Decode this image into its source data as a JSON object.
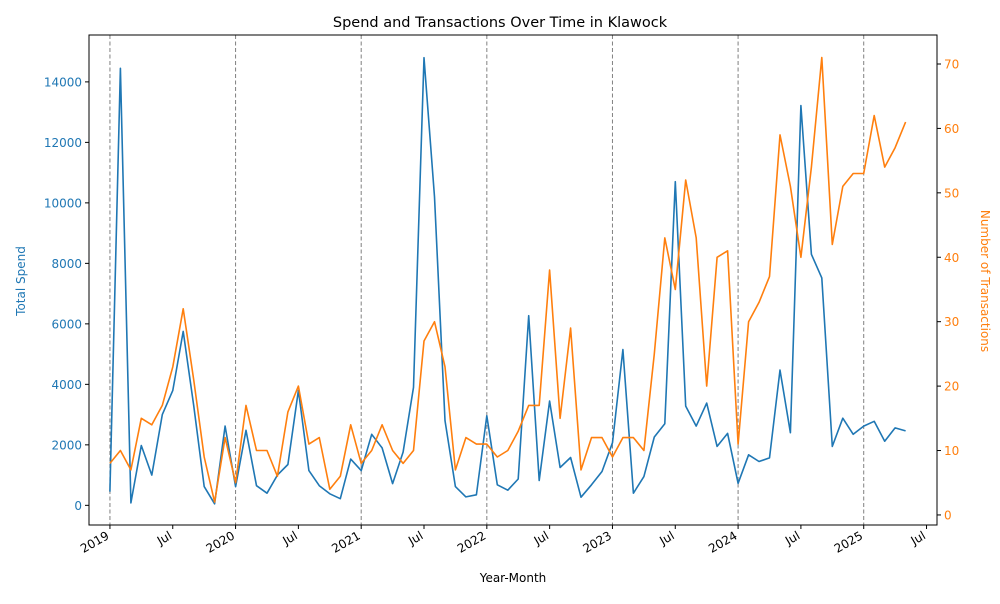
{
  "chart_data": {
    "type": "line",
    "title": "Spend and Transactions Over Time in Klawock",
    "xlabel": "Year-Month",
    "ylabel_left": "Total Spend",
    "ylabel_right": "Number of Transactions",
    "x_start": "2019-01",
    "xlim": [
      "2018-11",
      "2025-08"
    ],
    "ylim_left": [
      -650,
      15550
    ],
    "ylim_right": [
      -1.56,
      74.5
    ],
    "yticks_left": [
      "0",
      "2000",
      "4000",
      "6000",
      "8000",
      "10000",
      "12000",
      "14000"
    ],
    "yticks_right": [
      "0",
      "10",
      "20",
      "30",
      "40",
      "50",
      "60",
      "70"
    ],
    "xticks": [
      {
        "date": "2019-01",
        "label": "2019"
      },
      {
        "date": "2019-07",
        "label": "Jul"
      },
      {
        "date": "2020-01",
        "label": "2020"
      },
      {
        "date": "2020-07",
        "label": "Jul"
      },
      {
        "date": "2021-01",
        "label": "2021"
      },
      {
        "date": "2021-07",
        "label": "Jul"
      },
      {
        "date": "2022-01",
        "label": "2022"
      },
      {
        "date": "2022-07",
        "label": "Jul"
      },
      {
        "date": "2023-01",
        "label": "2023"
      },
      {
        "date": "2023-07",
        "label": "Jul"
      },
      {
        "date": "2024-01",
        "label": "2024"
      },
      {
        "date": "2024-07",
        "label": "Jul"
      },
      {
        "date": "2025-01",
        "label": "2025"
      },
      {
        "date": "2025-07",
        "label": "Jul"
      }
    ],
    "year_lines": [
      "2019-01",
      "2020-01",
      "2021-01",
      "2022-01",
      "2023-01",
      "2024-01",
      "2025-01"
    ],
    "series": [
      {
        "axis": "left",
        "color": "#1f77b4",
        "values": [
          450,
          14450,
          80,
          1980,
          1000,
          3000,
          3800,
          5750,
          3300,
          620,
          50,
          2620,
          620,
          2480,
          650,
          400,
          1000,
          1350,
          3800,
          1150,
          650,
          380,
          220,
          1530,
          1150,
          2350,
          1900,
          720,
          1760,
          3900,
          14800,
          10200,
          2800,
          620,
          280,
          350,
          2960,
          680,
          500,
          870,
          6270,
          820,
          3450,
          1250,
          1580,
          270,
          680,
          1120,
          2070,
          5150,
          400,
          950,
          2260,
          2700,
          10700,
          3280,
          2620,
          3380,
          1950,
          2380,
          730,
          1670,
          1450,
          1570,
          4470,
          2400,
          13220,
          8300,
          7520,
          1950,
          2880,
          2350,
          2620,
          2780,
          2120,
          2560,
          2460
        ]
      },
      {
        "axis": "right",
        "color": "#ff7f0e",
        "values": [
          8,
          10,
          7,
          15,
          14,
          17,
          23,
          32,
          21,
          9,
          2,
          12,
          5,
          17,
          10,
          10,
          6,
          16,
          20,
          11,
          12,
          4,
          6,
          14,
          8,
          10,
          14,
          10,
          8,
          10,
          27,
          30,
          23,
          7,
          12,
          11,
          11,
          9,
          10,
          13,
          17,
          17,
          38,
          15,
          29,
          7,
          12,
          12,
          9,
          12,
          12,
          10,
          25,
          43,
          35,
          52,
          43,
          20,
          40,
          41,
          11,
          30,
          33,
          37,
          59,
          51,
          40,
          54,
          71,
          42,
          51,
          53,
          53,
          62,
          54,
          57,
          61
        ]
      }
    ]
  }
}
